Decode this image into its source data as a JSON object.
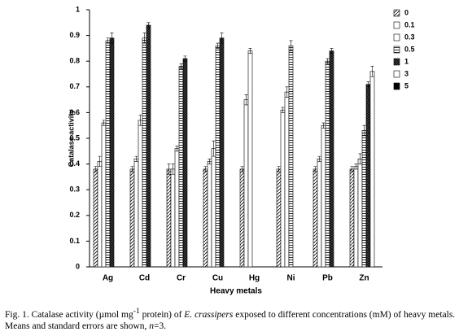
{
  "chart_data": {
    "type": "bar",
    "x_label": "Heavy metals",
    "y_label": "Catalase activity",
    "categories": [
      "Ag",
      "Cd",
      "Cr",
      "Cu",
      "Hg",
      "Ni",
      "Pb",
      "Zn"
    ],
    "series": [
      {
        "name": "0",
        "color": "#000",
        "pattern": "diagonal",
        "values": [
          0.38,
          0.38,
          0.38,
          0.38,
          0.38,
          0.38,
          0.38,
          0.38
        ],
        "errors": [
          0.01,
          0.01,
          0.02,
          0.01,
          0.01,
          0.01,
          0.01,
          0.01
        ]
      },
      {
        "name": "0.1",
        "color": "#000",
        "pattern": "none",
        "values": [
          0.41,
          0.42,
          0.38,
          0.41,
          0.65,
          0.61,
          0.42,
          0.39
        ],
        "errors": [
          0.02,
          0.01,
          0.02,
          0.01,
          0.02,
          0.01,
          0.01,
          0.01
        ]
      },
      {
        "name": "0.3",
        "color": "#000",
        "pattern": "none",
        "values": [
          0.56,
          0.57,
          0.46,
          0.46,
          0.84,
          0.68,
          0.55,
          0.42
        ],
        "errors": [
          0.01,
          0.02,
          0.01,
          0.03,
          0.01,
          0.02,
          0.01,
          0.02
        ]
      },
      {
        "name": "0.5",
        "color": "#000",
        "pattern": "horizontal",
        "values": [
          0.88,
          0.89,
          0.78,
          0.86,
          null,
          0.86,
          0.8,
          0.53
        ],
        "errors": [
          0.01,
          0.02,
          0.01,
          0.01,
          null,
          0.02,
          0.01,
          0.02
        ]
      },
      {
        "name": "1",
        "color": "#000",
        "pattern": "cross",
        "values": [
          0.89,
          0.94,
          0.81,
          0.89,
          null,
          null,
          0.84,
          0.71
        ],
        "errors": [
          0.02,
          0.01,
          0.01,
          0.02,
          null,
          null,
          0.01,
          0.01
        ]
      },
      {
        "name": "3",
        "color": "#000",
        "pattern": "none",
        "values": [
          null,
          null,
          null,
          null,
          null,
          null,
          null,
          0.76
        ],
        "errors": [
          null,
          null,
          null,
          null,
          null,
          null,
          null,
          0.02
        ]
      },
      {
        "name": "5",
        "color": "#000",
        "pattern": "solid",
        "values": [
          null,
          null,
          null,
          null,
          null,
          null,
          null,
          null
        ],
        "errors": [
          null,
          null,
          null,
          null,
          null,
          null,
          null,
          null
        ]
      }
    ],
    "ylim": [
      0,
      1
    ],
    "yticks": [
      0,
      0.1,
      0.2,
      0.3,
      0.4,
      0.5,
      0.6,
      0.7,
      0.8,
      0.9,
      1
    ]
  },
  "caption": [
    "Fig. 1. Catalase activity (µmol mg",
    "-1",
    " protein) of ",
    "E. crassipers",
    " exposed to different concentrations (mM) of heavy metals. Means and standard errors are shown, ",
    "n",
    "=3."
  ]
}
